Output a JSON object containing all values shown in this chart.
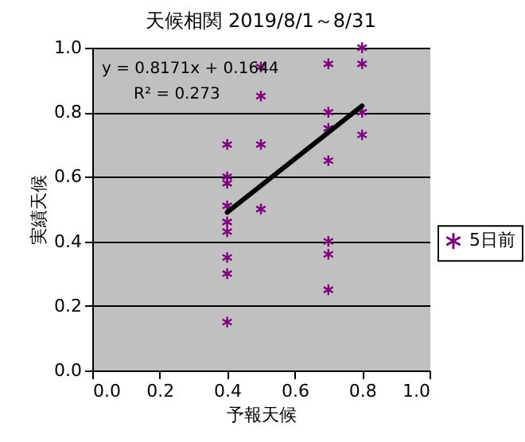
{
  "chart_data": {
    "type": "scatter",
    "title": "天候相関 2019/8/1～8/31",
    "xlabel": "予報天候",
    "ylabel": "実績天候",
    "xlim": [
      0,
      1
    ],
    "ylim": [
      0,
      1
    ],
    "xticks": [
      {
        "value": 0,
        "label": "0.0"
      },
      {
        "value": 0.2,
        "label": "0.2"
      },
      {
        "value": 0.4,
        "label": "0.4"
      },
      {
        "value": 0.6,
        "label": "0.6"
      },
      {
        "value": 0.8,
        "label": "0.8"
      },
      {
        "value": 1,
        "label": "1.0"
      }
    ],
    "yticks": [
      {
        "value": 0,
        "label": "0.0"
      },
      {
        "value": 0.2,
        "label": "0.2"
      },
      {
        "value": 0.4,
        "label": "0.4"
      },
      {
        "value": 0.6,
        "label": "0.6"
      },
      {
        "value": 0.8,
        "label": "0.8"
      },
      {
        "value": 1,
        "label": "1.0"
      }
    ],
    "grid": "y",
    "legend": "right",
    "marker": "cross",
    "annotations": [
      "y = 0.8171x + 0.1644",
      "R² = 0.273"
    ],
    "series": [
      {
        "name": "5日前",
        "color": "#800080",
        "x": [
          0.4,
          0.4,
          0.4,
          0.4,
          0.4,
          0.4,
          0.4,
          0.4,
          0.4,
          0.5,
          0.5,
          0.5,
          0.5,
          0.7,
          0.7,
          0.7,
          0.7,
          0.7,
          0.7,
          0.7,
          0.8,
          0.8,
          0.8,
          0.8
        ],
        "values": [
          0.7,
          0.6,
          0.58,
          0.51,
          0.46,
          0.43,
          0.35,
          0.3,
          0.15,
          0.94,
          0.85,
          0.7,
          0.5,
          0.95,
          0.8,
          0.75,
          0.65,
          0.4,
          0.36,
          0.25,
          1.0,
          0.95,
          0.8,
          0.73
        ]
      },
      {
        "type": "line",
        "marker": "none",
        "color": "#000000",
        "x": [
          0.4,
          0.8
        ],
        "values": [
          0.49,
          0.82
        ]
      }
    ]
  }
}
